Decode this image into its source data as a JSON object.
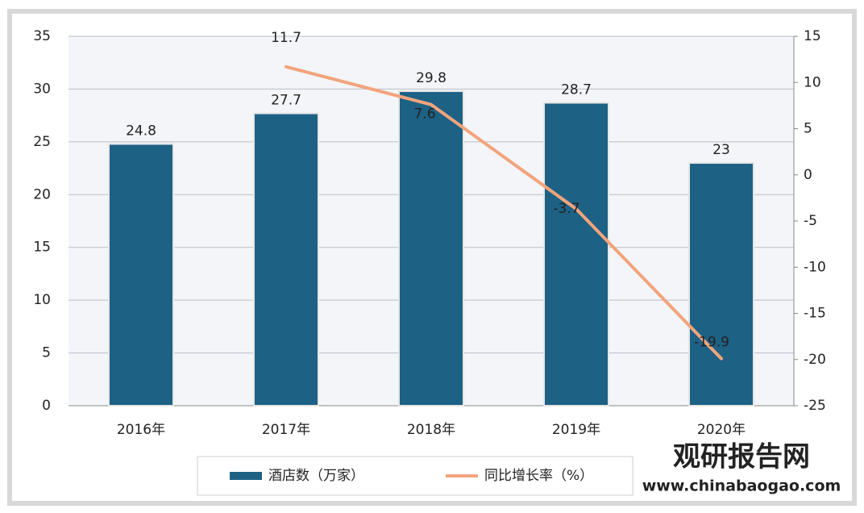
{
  "chart_data": {
    "type": "bar",
    "categories": [
      "2016年",
      "2017年",
      "2018年",
      "2019年",
      "2020年"
    ],
    "series": [
      {
        "name": "酒店数（万家）",
        "type": "bar",
        "color": "#1d6185",
        "values": [
          24.8,
          27.7,
          29.8,
          28.7,
          23
        ]
      },
      {
        "name": "同比增长率（%）",
        "type": "line",
        "axis": "y2",
        "color": "#f2a47c",
        "values": [
          null,
          11.7,
          7.6,
          -3.7,
          -19.9
        ]
      }
    ],
    "ylim": [
      0,
      35
    ],
    "yticks": [
      0,
      5,
      10,
      15,
      20,
      25,
      30,
      35
    ],
    "y2lim": [
      -25,
      15
    ],
    "y2ticks": [
      -25,
      -20,
      -15,
      -10,
      -5,
      0,
      5,
      10,
      15
    ],
    "grid": true,
    "legend": "bottom",
    "watermark": {
      "name": "观研报告网",
      "url": "www.chinabaogao.com"
    }
  }
}
